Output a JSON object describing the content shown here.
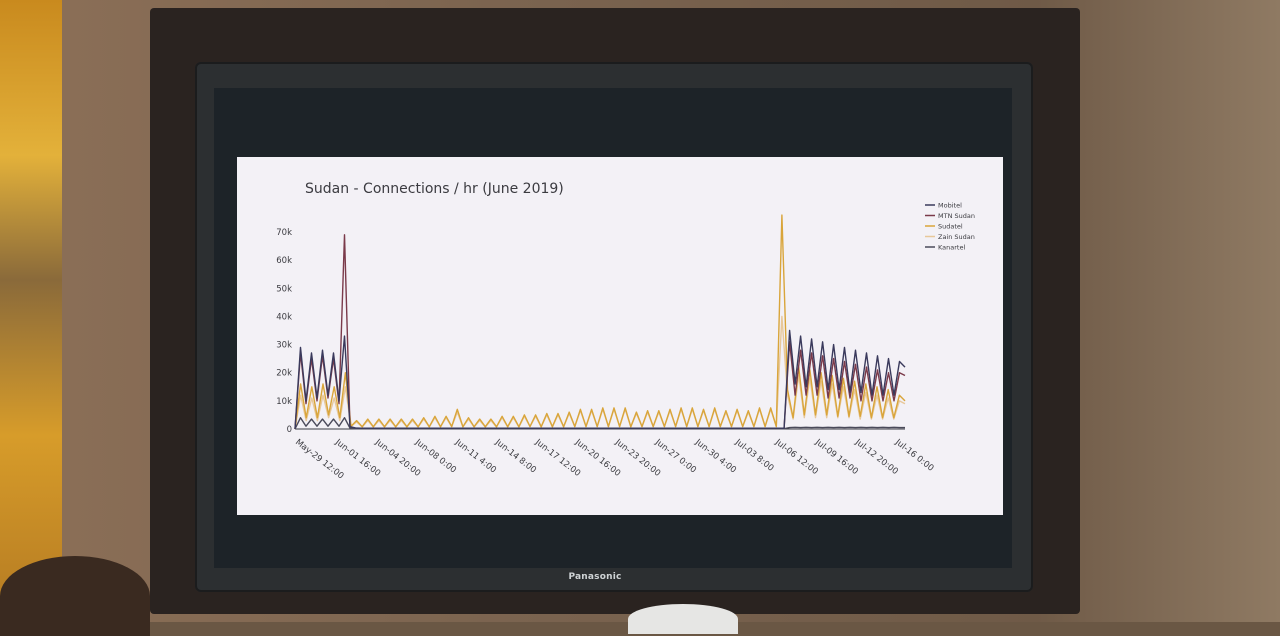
{
  "tv": {
    "brand": "Panasonic"
  },
  "chart_data": {
    "type": "line",
    "title": "Sudan - Connections / hr (June 2019)",
    "xlabel": "",
    "ylabel": "",
    "ylim": [
      0,
      70000
    ],
    "y_ticks": [
      {
        "value": 0,
        "label": "0"
      },
      {
        "value": 10000,
        "label": "10k"
      },
      {
        "value": 20000,
        "label": "20k"
      },
      {
        "value": 30000,
        "label": "30k"
      },
      {
        "value": 40000,
        "label": "40k"
      },
      {
        "value": 50000,
        "label": "50k"
      },
      {
        "value": 60000,
        "label": "60k"
      },
      {
        "value": 70000,
        "label": "70k"
      }
    ],
    "x_tick_labels": [
      "May-29 12:00",
      "Jun-01 16:00",
      "Jun-04 20:00",
      "Jun-08 0:00",
      "Jun-11 4:00",
      "Jun-14 8:00",
      "Jun-17 12:00",
      "Jun-20 16:00",
      "Jun-23 20:00",
      "Jun-27 0:00",
      "Jun-30 4:00",
      "Jul-03 8:00",
      "Jul-06 12:00",
      "Jul-09 16:00",
      "Jul-12 20:00",
      "Jul-16 0:00"
    ],
    "legend_position": "top-right",
    "grid": false,
    "series": [
      {
        "name": "Mobitel",
        "color": "#3a3a5c",
        "values": [
          0,
          29000,
          10000,
          27000,
          11000,
          28000,
          12000,
          27000,
          10000,
          33000,
          800,
          400,
          300,
          300,
          300,
          300,
          300,
          300,
          300,
          300,
          300,
          300,
          300,
          300,
          300,
          300,
          300,
          300,
          300,
          300,
          300,
          300,
          300,
          300,
          300,
          300,
          300,
          300,
          300,
          300,
          300,
          300,
          300,
          300,
          300,
          300,
          300,
          300,
          300,
          300,
          300,
          300,
          300,
          300,
          300,
          300,
          300,
          300,
          300,
          300,
          300,
          300,
          300,
          300,
          300,
          300,
          300,
          300,
          300,
          300,
          300,
          300,
          300,
          300,
          300,
          300,
          300,
          300,
          300,
          300,
          300,
          300,
          300,
          300,
          300,
          300,
          300,
          300,
          300,
          300,
          35000,
          16000,
          33000,
          15000,
          32000,
          15000,
          31000,
          14000,
          30000,
          14000,
          29000,
          13000,
          28000,
          13000,
          27000,
          12000,
          26000,
          12000,
          25000,
          12000,
          24000,
          22000
        ]
      },
      {
        "name": "MTN Sudan",
        "color": "#7a3a4a",
        "values": [
          0,
          27000,
          9000,
          25000,
          10000,
          26000,
          11000,
          25000,
          9000,
          69000,
          600,
          300,
          300,
          300,
          300,
          300,
          300,
          300,
          300,
          300,
          300,
          300,
          300,
          300,
          300,
          300,
          300,
          300,
          300,
          300,
          300,
          300,
          300,
          300,
          300,
          300,
          300,
          300,
          300,
          300,
          300,
          300,
          300,
          300,
          300,
          300,
          300,
          300,
          300,
          300,
          300,
          300,
          300,
          300,
          300,
          300,
          300,
          300,
          300,
          300,
          300,
          300,
          300,
          300,
          300,
          300,
          300,
          300,
          300,
          300,
          300,
          300,
          300,
          300,
          300,
          300,
          300,
          300,
          300,
          300,
          300,
          300,
          300,
          300,
          300,
          300,
          300,
          300,
          300,
          300,
          31000,
          12000,
          28000,
          12000,
          27000,
          12000,
          26000,
          11000,
          25000,
          11000,
          24000,
          11000,
          23000,
          10000,
          22000,
          10000,
          21000,
          10000,
          20000,
          10000,
          20000,
          19000
        ]
      },
      {
        "name": "Sudatel",
        "color": "#d9a53a",
        "values": [
          0,
          16000,
          4000,
          15000,
          4000,
          16000,
          5000,
          15000,
          4000,
          20000,
          1000,
          3000,
          800,
          3500,
          800,
          3500,
          800,
          3500,
          800,
          3500,
          800,
          3500,
          800,
          4000,
          800,
          4500,
          800,
          4500,
          900,
          7000,
          800,
          4000,
          800,
          3500,
          800,
          3500,
          800,
          4500,
          800,
          4500,
          800,
          5000,
          900,
          5000,
          800,
          5500,
          800,
          5500,
          800,
          6000,
          900,
          7000,
          900,
          7000,
          900,
          7500,
          900,
          7500,
          900,
          7500,
          800,
          6000,
          900,
          6500,
          900,
          6500,
          900,
          7000,
          900,
          7500,
          900,
          7500,
          900,
          7000,
          900,
          7500,
          900,
          6500,
          900,
          7000,
          900,
          6500,
          900,
          7500,
          900,
          7500,
          900,
          76000,
          14000,
          4000,
          22000,
          5000,
          21000,
          5000,
          20000,
          5000,
          19000,
          4500,
          18000,
          4500,
          17000,
          4500,
          16000,
          4000,
          15000,
          4000,
          14000,
          4000,
          12000,
          10000
        ]
      },
      {
        "name": "Zain Sudan",
        "color": "#e8c89a",
        "values": [
          0,
          12000,
          3000,
          11000,
          3000,
          12000,
          4000,
          11000,
          3000,
          15000,
          900,
          2500,
          700,
          3000,
          700,
          3000,
          700,
          3000,
          700,
          3000,
          700,
          3000,
          700,
          3500,
          700,
          4000,
          700,
          4000,
          800,
          6000,
          700,
          3500,
          700,
          3000,
          700,
          3000,
          700,
          4000,
          700,
          4000,
          700,
          4500,
          800,
          4500,
          700,
          5000,
          700,
          5000,
          700,
          5500,
          800,
          6500,
          800,
          6500,
          800,
          7000,
          800,
          7000,
          800,
          7000,
          700,
          5500,
          800,
          6000,
          800,
          6000,
          800,
          6500,
          800,
          7000,
          800,
          7000,
          800,
          6500,
          800,
          7000,
          800,
          6000,
          800,
          6500,
          800,
          6000,
          800,
          7000,
          800,
          7000,
          800,
          40000,
          12000,
          3500,
          19000,
          4000,
          18000,
          4000,
          17000,
          4000,
          16000,
          4000,
          15000,
          4000,
          14000,
          3500,
          13000,
          3500,
          12000,
          3500,
          11000,
          3500,
          10000,
          9000
        ]
      },
      {
        "name": "Kanartel",
        "color": "#4a4a5a",
        "values": [
          0,
          4000,
          1000,
          3500,
          1000,
          3500,
          1000,
          3500,
          1000,
          4000,
          300,
          100,
          100,
          100,
          100,
          100,
          100,
          100,
          100,
          100,
          100,
          100,
          100,
          100,
          100,
          100,
          100,
          100,
          100,
          100,
          100,
          100,
          100,
          100,
          100,
          100,
          100,
          100,
          100,
          100,
          100,
          100,
          100,
          100,
          100,
          100,
          100,
          100,
          100,
          100,
          100,
          100,
          100,
          100,
          100,
          100,
          100,
          100,
          100,
          100,
          100,
          100,
          100,
          100,
          100,
          100,
          100,
          100,
          100,
          100,
          100,
          100,
          100,
          100,
          100,
          100,
          100,
          100,
          100,
          100,
          100,
          100,
          100,
          100,
          100,
          100,
          100,
          100,
          100,
          100,
          500,
          600,
          500,
          600,
          500,
          600,
          500,
          600,
          500,
          600,
          500,
          600,
          500,
          600,
          500,
          600,
          500,
          600,
          500,
          600,
          500,
          500
        ]
      }
    ]
  }
}
